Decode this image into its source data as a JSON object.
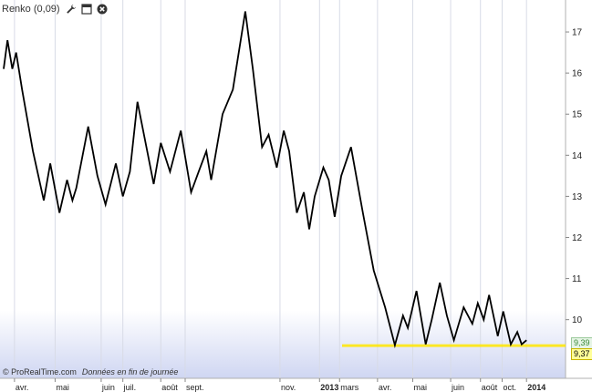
{
  "toolbar": {
    "indicator_label": "Renko (0,09)",
    "icons": [
      "wrench-icon",
      "window-icon",
      "close-icon"
    ]
  },
  "footer": {
    "copyright": "© ProRealTime.com",
    "note": "Données en fin de journée"
  },
  "badges": {
    "upper_value": "9,39",
    "last_value": "9,37",
    "upper_color": "#3a8a3a",
    "last_color": "#ffff99"
  },
  "chart_data": {
    "type": "line",
    "y_axis_position": "right",
    "ylim": [
      8.95,
      17.6
    ],
    "y_ticks": [
      10,
      11,
      12,
      13,
      14,
      15,
      16,
      17
    ],
    "x_range": [
      0,
      100
    ],
    "x_ticks": [
      {
        "label": "avr.",
        "x": 2.0,
        "bold": false
      },
      {
        "label": "mai",
        "x": 9.5,
        "bold": false
      },
      {
        "label": "juin",
        "x": 18.0,
        "bold": false
      },
      {
        "label": "juil.",
        "x": 22.0,
        "bold": false
      },
      {
        "label": "août",
        "x": 29.0,
        "bold": false
      },
      {
        "label": "sept.",
        "x": 33.5,
        "bold": false
      },
      {
        "label": "nov.",
        "x": 51.0,
        "bold": false
      },
      {
        "label": "2013",
        "x": 58.3,
        "bold": true
      },
      {
        "label": "mars",
        "x": 62.0,
        "bold": false
      },
      {
        "label": "avr.",
        "x": 69.0,
        "bold": false
      },
      {
        "label": "mai",
        "x": 75.5,
        "bold": false
      },
      {
        "label": "juin",
        "x": 82.5,
        "bold": false
      },
      {
        "label": "août",
        "x": 88.0,
        "bold": false
      },
      {
        "label": "oct.",
        "x": 92.0,
        "bold": false
      },
      {
        "label": "2014",
        "x": 96.5,
        "bold": true
      }
    ],
    "support_level": 9.37,
    "support_color": "#ffe600",
    "line_color": "#000000",
    "series": [
      {
        "x": [
          0.0,
          0.7,
          1.6,
          2.3,
          3.4,
          5.4,
          7.4,
          8.6,
          10.3,
          11.7,
          12.7,
          13.4,
          15.6,
          17.3,
          18.8,
          20.7,
          22.0,
          23.3,
          24.7,
          26.5,
          27.7,
          29.0,
          30.7,
          32.7,
          34.6,
          36.0,
          37.4,
          38.3,
          40.4,
          42.3,
          44.6,
          46.0,
          47.7,
          48.9,
          50.4,
          51.7,
          52.7,
          54.1,
          55.4,
          56.4,
          57.4,
          59.0,
          60.0,
          61.1,
          62.3,
          64.1,
          66.3,
          68.3,
          70.4,
          72.2,
          73.7,
          74.6,
          76.2,
          77.9,
          79.0,
          80.5,
          81.8,
          83.1,
          84.9,
          86.5,
          87.5,
          88.6,
          89.6,
          91.2,
          92.2,
          93.6,
          94.8,
          95.6,
          96.5
        ],
        "y": [
          16.1,
          16.8,
          16.1,
          16.5,
          15.6,
          14.1,
          12.9,
          13.8,
          12.6,
          13.4,
          12.9,
          13.2,
          14.7,
          13.5,
          12.8,
          13.8,
          13.0,
          13.6,
          15.3,
          14.1,
          13.3,
          14.3,
          13.6,
          14.6,
          13.1,
          13.6,
          14.1,
          13.4,
          15.0,
          15.6,
          17.5,
          16.1,
          14.2,
          14.5,
          13.7,
          14.6,
          14.1,
          12.6,
          13.1,
          12.2,
          13.0,
          13.7,
          13.4,
          12.5,
          13.5,
          14.2,
          12.6,
          11.2,
          10.3,
          9.38,
          10.1,
          9.8,
          10.7,
          9.4,
          10.0,
          10.9,
          10.1,
          9.5,
          10.3,
          9.9,
          10.4,
          10.0,
          10.6,
          9.6,
          10.2,
          9.4,
          9.7,
          9.4,
          9.5
        ]
      }
    ]
  }
}
